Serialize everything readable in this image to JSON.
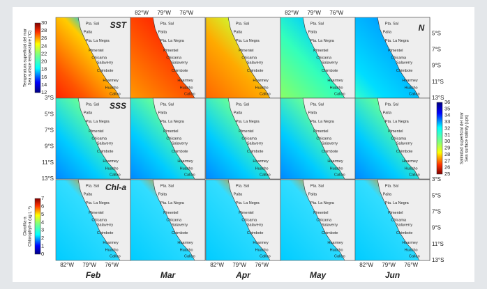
{
  "rows": [
    {
      "label": "SST"
    },
    {
      "label": "SSS"
    },
    {
      "label": "Chl-a"
    }
  ],
  "months": [
    "Feb",
    "Mar",
    "Apr",
    "May",
    "Jun"
  ],
  "places": [
    "Pta. Sal",
    "Paita",
    "Pta. La Negra",
    "Pimentel",
    "Chicama",
    "Salaverry",
    "Chimbote",
    "Huarmey",
    "Huacho",
    "Callao"
  ],
  "longitudes": [
    "82°W",
    "79°W",
    "76°W"
  ],
  "latitudes": [
    "3°S",
    "5°S",
    "7°S",
    "9°S",
    "11°S",
    "13°S"
  ],
  "north": "N",
  "colorbars": [
    {
      "title": "Temperatura superficial del mar",
      "subtitle": "Sea surface temperature (°C)",
      "ticks": [
        12,
        14,
        16,
        18,
        20,
        22,
        24,
        26,
        28,
        30
      ]
    },
    {
      "title": "Salinidad superficial del mar",
      "subtitle": "Sea surface salinity (ups)",
      "ticks": [
        25,
        26,
        27,
        28,
        29,
        30,
        31,
        32,
        33,
        34,
        35,
        36
      ]
    },
    {
      "title": "Clorofila-a",
      "subtitle": "Chlorophyll-a (ug L⁻¹)",
      "ticks": [
        0,
        1,
        2,
        3,
        4,
        5,
        6,
        7
      ]
    }
  ]
}
